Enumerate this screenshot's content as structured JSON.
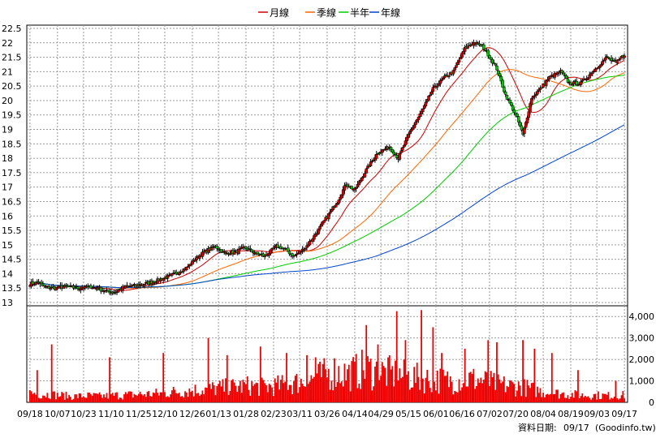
{
  "chart_data": {
    "type": "candlestick",
    "legend": [
      {
        "name": "月線",
        "color": "#cc0000"
      },
      {
        "name": "季線",
        "color": "#ff6600"
      },
      {
        "name": "半年",
        "color": "#00cc00"
      },
      {
        "name": "年線",
        "color": "#0044cc"
      }
    ],
    "price_axis": {
      "ylim": [
        13,
        22.5
      ],
      "ticks": [
        "13",
        "13.5",
        "14",
        "14.5",
        "15",
        "15.5",
        "16",
        "16.5",
        "17",
        "17.5",
        "18",
        "18.5",
        "19",
        "19.5",
        "20",
        "20.5",
        "21",
        "21.5",
        "22",
        "22.5"
      ]
    },
    "volume_axis": {
      "ylim": [
        0,
        4500
      ],
      "ticks": [
        "0",
        "1,000",
        "2,000",
        "3,000",
        "4,000"
      ]
    },
    "x_labels": [
      "09/18",
      "10/07",
      "10/23",
      "11/10",
      "11/25",
      "12/10",
      "12/26",
      "01/13",
      "01/28",
      "02/23",
      "03/11",
      "03/26",
      "04/14",
      "04/29",
      "05/15",
      "06/01",
      "06/16",
      "07/02",
      "07/20",
      "08/04",
      "08/19",
      "09/03",
      "09/17"
    ],
    "close_anchors": [
      [
        0,
        13.65
      ],
      [
        6,
        13.7
      ],
      [
        10,
        13.55
      ],
      [
        16,
        13.5
      ],
      [
        24,
        13.55
      ],
      [
        34,
        13.5
      ],
      [
        42,
        13.55
      ],
      [
        52,
        13.4
      ],
      [
        58,
        13.35
      ],
      [
        66,
        13.55
      ],
      [
        74,
        13.6
      ],
      [
        84,
        13.7
      ],
      [
        96,
        13.9
      ],
      [
        108,
        14.2
      ],
      [
        116,
        14.6
      ],
      [
        122,
        14.8
      ],
      [
        128,
        14.95
      ],
      [
        134,
        14.7
      ],
      [
        142,
        14.75
      ],
      [
        148,
        14.9
      ],
      [
        156,
        14.7
      ],
      [
        162,
        14.6
      ],
      [
        170,
        14.95
      ],
      [
        176,
        14.85
      ],
      [
        182,
        14.6
      ],
      [
        190,
        14.9
      ],
      [
        196,
        15.3
      ],
      [
        204,
        15.9
      ],
      [
        212,
        16.5
      ],
      [
        218,
        17.1
      ],
      [
        224,
        16.9
      ],
      [
        232,
        17.6
      ],
      [
        240,
        18.2
      ],
      [
        248,
        18.4
      ],
      [
        254,
        18.0
      ],
      [
        262,
        18.9
      ],
      [
        270,
        19.6
      ],
      [
        278,
        20.4
      ],
      [
        286,
        20.8
      ],
      [
        292,
        21.0
      ],
      [
        300,
        21.8
      ],
      [
        306,
        22.0
      ],
      [
        312,
        21.9
      ],
      [
        316,
        21.6
      ],
      [
        322,
        21.1
      ],
      [
        328,
        20.2
      ],
      [
        332,
        19.8
      ],
      [
        336,
        19.4
      ],
      [
        340,
        18.8
      ],
      [
        346,
        20.1
      ],
      [
        352,
        20.4
      ],
      [
        358,
        20.8
      ],
      [
        366,
        21.0
      ],
      [
        372,
        20.6
      ],
      [
        380,
        20.6
      ],
      [
        386,
        20.9
      ],
      [
        392,
        21.2
      ],
      [
        398,
        21.5
      ],
      [
        404,
        21.3
      ],
      [
        410,
        21.6
      ]
    ],
    "volume_anchors": [
      [
        0,
        400
      ],
      [
        10,
        350
      ],
      [
        20,
        300
      ],
      [
        30,
        250
      ],
      [
        40,
        280
      ],
      [
        50,
        260
      ],
      [
        60,
        300
      ],
      [
        70,
        320
      ],
      [
        80,
        350
      ],
      [
        90,
        380
      ],
      [
        100,
        450
      ],
      [
        110,
        500
      ],
      [
        120,
        550
      ],
      [
        130,
        600
      ],
      [
        140,
        650
      ],
      [
        150,
        700
      ],
      [
        160,
        650
      ],
      [
        170,
        700
      ],
      [
        180,
        800
      ],
      [
        190,
        900
      ],
      [
        200,
        1100
      ],
      [
        210,
        1300
      ],
      [
        220,
        1200
      ],
      [
        230,
        1400
      ],
      [
        240,
        1300
      ],
      [
        250,
        1200
      ],
      [
        260,
        1100
      ],
      [
        270,
        1000
      ],
      [
        280,
        950
      ],
      [
        290,
        900
      ],
      [
        300,
        1000
      ],
      [
        310,
        950
      ],
      [
        320,
        800
      ],
      [
        330,
        700
      ],
      [
        340,
        650
      ],
      [
        350,
        500
      ],
      [
        360,
        400
      ],
      [
        370,
        350
      ],
      [
        380,
        300
      ],
      [
        390,
        300
      ],
      [
        400,
        280
      ],
      [
        410,
        300
      ]
    ],
    "volume_spikes": [
      [
        5,
        1500
      ],
      [
        15,
        2700
      ],
      [
        55,
        2100
      ],
      [
        92,
        2300
      ],
      [
        123,
        3000
      ],
      [
        136,
        2200
      ],
      [
        159,
        2600
      ],
      [
        177,
        2300
      ],
      [
        191,
        2200
      ],
      [
        197,
        2100
      ],
      [
        232,
        3600
      ],
      [
        240,
        2700
      ],
      [
        253,
        4250
      ],
      [
        259,
        2900
      ],
      [
        270,
        4300
      ],
      [
        278,
        3500
      ],
      [
        284,
        2300
      ],
      [
        300,
        2500
      ],
      [
        316,
        2900
      ],
      [
        322,
        2800
      ],
      [
        340,
        2900
      ],
      [
        348,
        2500
      ],
      [
        360,
        2300
      ],
      [
        378,
        1500
      ],
      [
        404,
        1000
      ]
    ],
    "n_bars": 411,
    "footer": {
      "label": "資料日期:",
      "date": "09/17",
      "source": "(Goodinfo.tw)"
    }
  }
}
